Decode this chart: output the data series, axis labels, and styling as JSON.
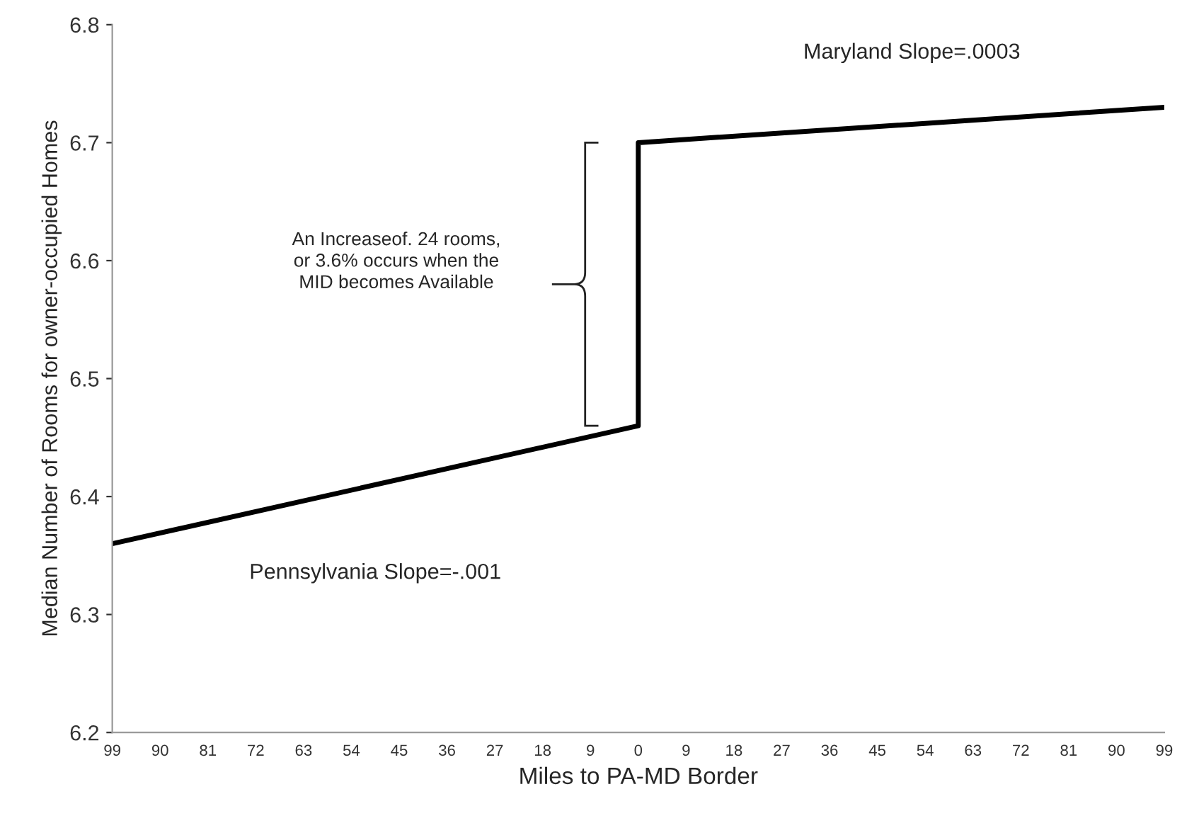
{
  "chart_data": {
    "type": "line",
    "xlabel": "Miles to PA-MD Border",
    "ylabel": "Median Number of Rooms for owner-occupied Homes",
    "series": [
      {
        "color": "#000000",
        "x": [
          -99,
          0,
          0,
          99
        ],
        "values": [
          6.36,
          6.46,
          6.7,
          6.73
        ]
      }
    ],
    "xlim": [
      -99,
      99
    ],
    "xticks": [
      {
        "value": -99,
        "label": "99"
      },
      {
        "value": -90,
        "label": "90"
      },
      {
        "value": -81,
        "label": "81"
      },
      {
        "value": -72,
        "label": "72"
      },
      {
        "value": -63,
        "label": "63"
      },
      {
        "value": -54,
        "label": "54"
      },
      {
        "value": -45,
        "label": "45"
      },
      {
        "value": -36,
        "label": "36"
      },
      {
        "value": -27,
        "label": "27"
      },
      {
        "value": -18,
        "label": "18"
      },
      {
        "value": -9,
        "label": "9"
      },
      0,
      9,
      18,
      27,
      36,
      45,
      54,
      63,
      72,
      81,
      90,
      99
    ],
    "ylim": [
      6.2,
      6.8
    ],
    "yticks": [
      6.2,
      6.3,
      6.4,
      6.5,
      6.6,
      6.7,
      6.8
    ],
    "grid": false,
    "marker": "none",
    "line_style": "solid",
    "annotations": [
      "Maryland Slope=.0003",
      "Pennsylvania Slope=-.001",
      "An Increaseof. 24 rooms,\nor 3.6% occurs when the\nMID becomes Available"
    ]
  }
}
